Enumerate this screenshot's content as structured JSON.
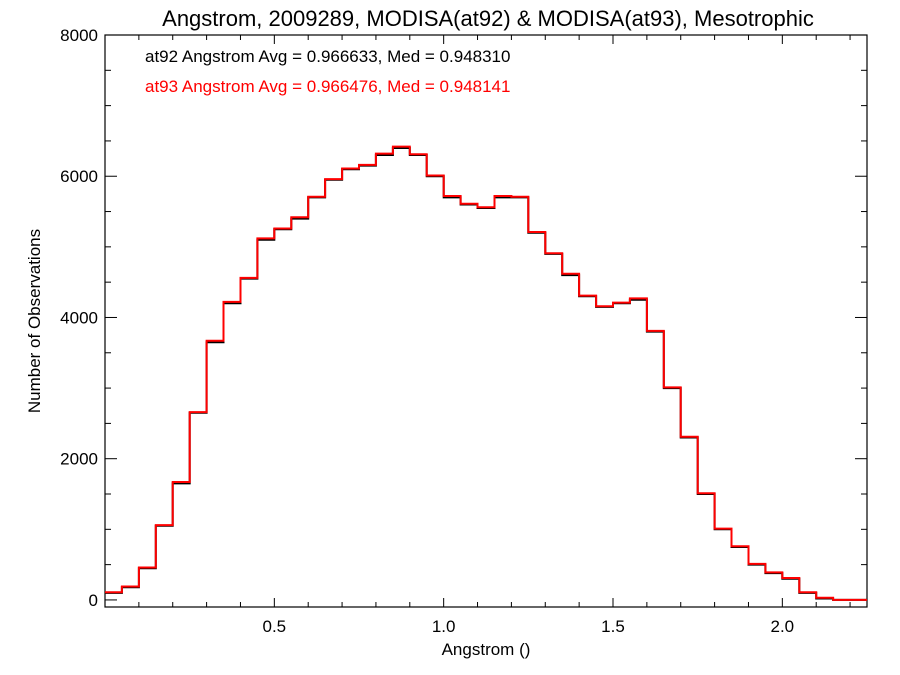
{
  "chart_data": {
    "type": "line",
    "title": "Angstrom, 2009289, MODISA(at92) & MODISA(at93), Mesotrophic",
    "xlabel": "Angstrom ()",
    "ylabel": "Number of Observations",
    "xlim": [
      0.0,
      2.25
    ],
    "ylim": [
      -100,
      8000
    ],
    "x_ticks": [
      0.5,
      1.0,
      1.5,
      2.0
    ],
    "x_tick_labels": [
      "0.5",
      "1.0",
      "1.5",
      "2.0"
    ],
    "y_ticks": [
      0,
      2000,
      4000,
      6000,
      8000
    ],
    "y_tick_labels": [
      "0",
      "2000",
      "4000",
      "6000",
      "8000"
    ],
    "grid": false,
    "step": true,
    "annotations": [
      {
        "text": "at92 Angstrom Avg = 0.966633, Med = 0.948310",
        "color": "#000000"
      },
      {
        "text": "at93 Angstrom Avg = 0.966476, Med = 0.948141",
        "color": "#ff0000"
      }
    ],
    "series": [
      {
        "color": "#000000",
        "x": [
          0.0,
          0.05,
          0.1,
          0.15,
          0.2,
          0.25,
          0.3,
          0.35,
          0.4,
          0.45,
          0.5,
          0.55,
          0.6,
          0.65,
          0.7,
          0.75,
          0.8,
          0.85,
          0.9,
          0.95,
          1.0,
          1.05,
          1.1,
          1.15,
          1.2,
          1.25,
          1.3,
          1.35,
          1.4,
          1.45,
          1.5,
          1.55,
          1.6,
          1.65,
          1.7,
          1.75,
          1.8,
          1.85,
          1.9,
          1.95,
          2.0,
          2.05,
          2.1,
          2.15,
          2.2,
          2.25
        ],
        "y": [
          100,
          180,
          450,
          1050,
          1650,
          2650,
          3650,
          4200,
          4550,
          5100,
          5250,
          5400,
          5700,
          5950,
          6100,
          6150,
          6300,
          6400,
          6300,
          6000,
          5700,
          5600,
          5550,
          5700,
          5700,
          5200,
          4900,
          4600,
          4300,
          4150,
          4200,
          4250,
          3800,
          3000,
          2300,
          1500,
          1000,
          750,
          500,
          380,
          300,
          100,
          20,
          0,
          0,
          0
        ]
      },
      {
        "color": "#ff0000",
        "x": [
          0.0,
          0.05,
          0.1,
          0.15,
          0.2,
          0.25,
          0.3,
          0.35,
          0.4,
          0.45,
          0.5,
          0.55,
          0.6,
          0.65,
          0.7,
          0.75,
          0.8,
          0.85,
          0.9,
          0.95,
          1.0,
          1.05,
          1.1,
          1.15,
          1.2,
          1.25,
          1.3,
          1.35,
          1.4,
          1.45,
          1.5,
          1.55,
          1.6,
          1.65,
          1.7,
          1.75,
          1.8,
          1.85,
          1.9,
          1.95,
          2.0,
          2.05,
          2.1,
          2.15,
          2.2,
          2.25
        ],
        "y": [
          110,
          190,
          460,
          1060,
          1670,
          2660,
          3670,
          4220,
          4560,
          5120,
          5260,
          5420,
          5710,
          5960,
          6110,
          6160,
          6320,
          6420,
          6310,
          6010,
          5720,
          5610,
          5560,
          5720,
          5710,
          5210,
          4910,
          4620,
          4310,
          4160,
          4210,
          4270,
          3810,
          3010,
          2310,
          1510,
          1010,
          760,
          510,
          390,
          310,
          110,
          30,
          0,
          0,
          0
        ]
      }
    ]
  }
}
